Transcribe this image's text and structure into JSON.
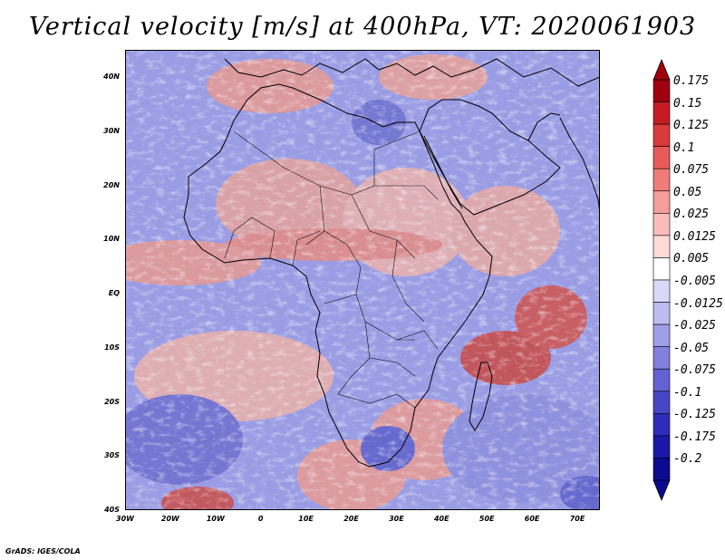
{
  "title": "Vertical velocity [m/s] at 400hPa, VT: 2020061903",
  "credit": "GrADS: IGES/COLA",
  "lat_labels": [
    "40N",
    "30N",
    "20N",
    "10N",
    "EQ",
    "10S",
    "20S",
    "30S",
    "40S"
  ],
  "lon_labels": [
    "30W",
    "20W",
    "10W",
    "0",
    "10E",
    "20E",
    "30E",
    "40E",
    "50E",
    "60E",
    "70E"
  ],
  "colorbar": {
    "labels": [
      "0.175",
      "0.15",
      "0.125",
      "0.1",
      "0.075",
      "0.05",
      "0.025",
      "0.0125",
      "0.005",
      "-0.005",
      "-0.0125",
      "-0.025",
      "-0.05",
      "-0.075",
      "-0.1",
      "-0.125",
      "-0.175",
      "-0.2"
    ],
    "colors": [
      "#a0000e",
      "#c51c24",
      "#d93a3c",
      "#e65a58",
      "#ef7c78",
      "#f59e9a",
      "#f9bdb9",
      "#fcdad7",
      "#ffffff",
      "#d9d9f7",
      "#bdbcef",
      "#a09ee6",
      "#8280dc",
      "#6462d2",
      "#4846c6",
      "#2e2cb8",
      "#1a18a6",
      "#0c0a90"
    ]
  },
  "colors": {
    "background": "#ffffff",
    "map_blue": "#8f92e0",
    "map_red": "#e8968f",
    "coast": "#000000"
  }
}
